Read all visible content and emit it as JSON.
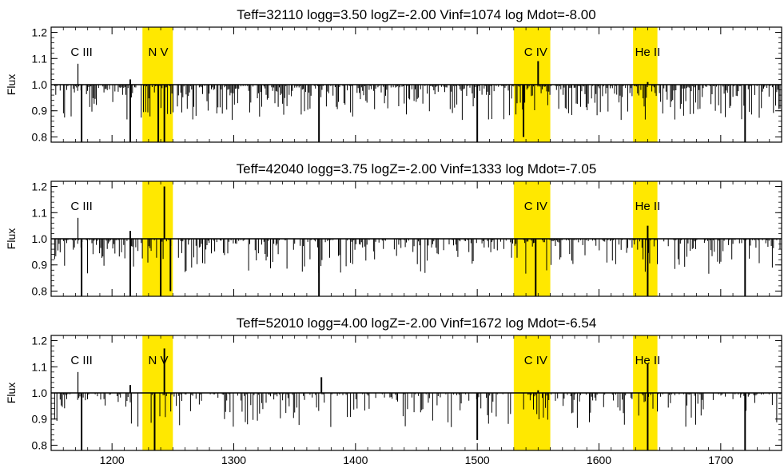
{
  "chart_data": [
    {
      "type": "line",
      "title": "Teff=32110 logg=3.50  logZ=-2.00 Vinf=1074  log Mdot=-8.00",
      "ylabel": "Flux",
      "xlim": [
        1150,
        1750
      ],
      "ylim": [
        0.78,
        1.22
      ],
      "yticks": [
        "0.8",
        "0.9",
        "1.0",
        "1.1",
        "1.2"
      ],
      "xticks": [],
      "highlight_color": "#ffe800",
      "bands": [
        [
          1225,
          1250
        ],
        [
          1530,
          1560
        ],
        [
          1628,
          1648
        ]
      ],
      "line_labels": [
        {
          "text": "C III",
          "x": 1175,
          "marker": true
        },
        {
          "text": "N V",
          "x": 1238,
          "marker": false
        },
        {
          "text": "C IV",
          "x": 1548,
          "marker": false
        },
        {
          "text": "He II",
          "x": 1640,
          "marker": false
        }
      ],
      "features": [
        {
          "x": 1175,
          "y": 0.78
        },
        {
          "x": 1215,
          "y": 0.78
        },
        {
          "x": 1215,
          "y": 1.02
        },
        {
          "x": 1238,
          "y": 0.78
        },
        {
          "x": 1243,
          "y": 0.78
        },
        {
          "x": 1370,
          "y": 0.78
        },
        {
          "x": 1500,
          "y": 0.78
        },
        {
          "x": 1538,
          "y": 0.8
        },
        {
          "x": 1550,
          "y": 1.09
        },
        {
          "x": 1640,
          "y": 1.01
        },
        {
          "x": 1720,
          "y": 0.78
        }
      ],
      "density": 0.7,
      "color": "#000000"
    },
    {
      "type": "line",
      "title": "Teff=42040 logg=3.75  logZ=-2.00 Vinf=1333  log Mdot=-7.05",
      "ylabel": "Flux",
      "xlim": [
        1150,
        1750
      ],
      "ylim": [
        0.78,
        1.22
      ],
      "yticks": [
        "0.8",
        "0.9",
        "1.0",
        "1.1",
        "1.2"
      ],
      "xticks": [],
      "highlight_color": "#ffe800",
      "bands": [
        [
          1225,
          1250
        ],
        [
          1530,
          1560
        ],
        [
          1628,
          1648
        ]
      ],
      "line_labels": [
        {
          "text": "C III",
          "x": 1175,
          "marker": true
        },
        {
          "text": "C IV",
          "x": 1548,
          "marker": false
        },
        {
          "text": "He II",
          "x": 1640,
          "marker": false
        }
      ],
      "features": [
        {
          "x": 1175,
          "y": 0.78
        },
        {
          "x": 1215,
          "y": 0.78
        },
        {
          "x": 1215,
          "y": 1.03
        },
        {
          "x": 1240,
          "y": 0.78
        },
        {
          "x": 1243,
          "y": 1.2
        },
        {
          "x": 1248,
          "y": 0.8
        },
        {
          "x": 1370,
          "y": 0.78
        },
        {
          "x": 1548,
          "y": 0.78
        },
        {
          "x": 1640,
          "y": 1.05
        },
        {
          "x": 1640,
          "y": 0.78
        },
        {
          "x": 1720,
          "y": 0.78
        }
      ],
      "density": 0.55,
      "color": "#000000"
    },
    {
      "type": "line",
      "title": "Teff=52010 logg=4.00  logZ=-2.00 Vinf=1672  log Mdot=-6.54",
      "ylabel": "Flux",
      "xlim": [
        1150,
        1750
      ],
      "ylim": [
        0.78,
        1.22
      ],
      "yticks": [
        "0.8",
        "0.9",
        "1.0",
        "1.1",
        "1.2"
      ],
      "xticks": [
        "1200",
        "1300",
        "1400",
        "1500",
        "1600",
        "1700"
      ],
      "highlight_color": "#ffe800",
      "bands": [
        [
          1225,
          1250
        ],
        [
          1530,
          1560
        ],
        [
          1628,
          1648
        ]
      ],
      "line_labels": [
        {
          "text": "C III",
          "x": 1175,
          "marker": true
        },
        {
          "text": "N V",
          "x": 1238,
          "marker": false
        },
        {
          "text": "C IV",
          "x": 1548,
          "marker": false
        },
        {
          "text": "He II",
          "x": 1640,
          "marker": false
        }
      ],
      "features": [
        {
          "x": 1175,
          "y": 0.78
        },
        {
          "x": 1215,
          "y": 1.03
        },
        {
          "x": 1235,
          "y": 0.78
        },
        {
          "x": 1243,
          "y": 1.17
        },
        {
          "x": 1372,
          "y": 1.06
        },
        {
          "x": 1500,
          "y": 0.82
        },
        {
          "x": 1550,
          "y": 1.01
        },
        {
          "x": 1640,
          "y": 1.11
        },
        {
          "x": 1640,
          "y": 0.78
        },
        {
          "x": 1720,
          "y": 0.78
        }
      ],
      "density": 0.45,
      "color": "#000000"
    }
  ]
}
